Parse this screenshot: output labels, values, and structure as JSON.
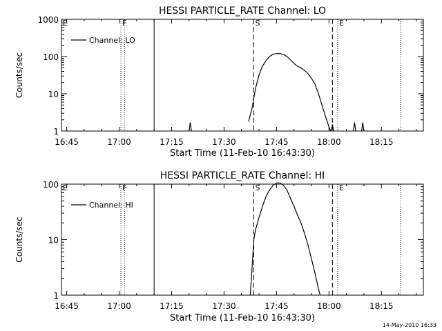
{
  "footer": "14-May-2010 16:33",
  "chart_data": [
    {
      "type": "line",
      "title": "HESSI PARTICLE_RATE Channel: LO",
      "xlabel": "Start Time (11-Feb-10 16:43:30)",
      "ylabel": "Counts/sec",
      "yscale": "log",
      "ylim": [
        1,
        1000
      ],
      "xlim": [
        "16:43:30",
        "18:27:00"
      ],
      "xticks": [
        "16:45",
        "17:00",
        "17:15",
        "17:30",
        "17:45",
        "18:00",
        "18:15"
      ],
      "yticks": [
        "1",
        "10",
        "100",
        "1000"
      ],
      "legend": {
        "label": "Channel: LO",
        "position": "top-left"
      },
      "markers": [
        {
          "label": "F",
          "time": "17:00:30",
          "style": "dotted"
        },
        {
          "label": "",
          "time": "17:01:30",
          "style": "dotted"
        },
        {
          "label": "",
          "time": "17:10:00",
          "style": "solid"
        },
        {
          "label": "S",
          "time": "17:38:30",
          "style": "dashed"
        },
        {
          "label": "",
          "time": "18:01:00",
          "style": "dashed"
        },
        {
          "label": "E",
          "time": "18:02:30",
          "style": "dotted"
        },
        {
          "label": "",
          "time": "18:20:30",
          "style": "dotted"
        }
      ],
      "series": [
        {
          "name": "Channel: LO",
          "segments": [
            {
              "x": [
                "17:20:00",
                "17:20:20",
                "17:20:40"
              ],
              "y": [
                1,
                1.7,
                1
              ]
            },
            {
              "x": [
                "17:37:00",
                "17:38:00",
                "17:39:00",
                "17:40:00",
                "17:41:00",
                "17:42:00",
                "17:43:00",
                "17:44:00",
                "17:45:00",
                "17:46:00",
                "17:47:00",
                "17:48:00",
                "17:49:00",
                "17:50:00",
                "17:51:00",
                "17:52:00",
                "17:53:00",
                "17:54:00",
                "17:55:00",
                "17:56:00",
                "17:57:00",
                "17:58:00",
                "17:59:00",
                "18:00:00",
                "18:00:30"
              ],
              "y": [
                1.8,
                4,
                14,
                32,
                55,
                78,
                100,
                115,
                120,
                120,
                113,
                100,
                82,
                65,
                55,
                50,
                42,
                35,
                26,
                18,
                10,
                5,
                2.5,
                1.3,
                1
              ]
            },
            {
              "x": [
                "18:00:40",
                "18:01:00",
                "18:01:20"
              ],
              "y": [
                1,
                1.5,
                1
              ]
            },
            {
              "x": [
                "18:07:00",
                "18:07:20",
                "18:07:40"
              ],
              "y": [
                1,
                1.7,
                1
              ]
            },
            {
              "x": [
                "18:09:20",
                "18:09:40",
                "18:10:00"
              ],
              "y": [
                1,
                1.7,
                1
              ]
            }
          ]
        }
      ]
    },
    {
      "type": "line",
      "title": "HESSI PARTICLE_RATE Channel: HI",
      "xlabel": "Start Time (11-Feb-10 16:43:30)",
      "ylabel": "Counts/sec",
      "yscale": "log",
      "ylim": [
        1,
        100
      ],
      "xlim": [
        "16:43:30",
        "18:27:00"
      ],
      "xticks": [
        "16:45",
        "17:00",
        "17:15",
        "17:30",
        "17:45",
        "18:00",
        "18:15"
      ],
      "yticks": [
        "1",
        "10",
        "100"
      ],
      "legend": {
        "label": "Channel: HI",
        "position": "top-left"
      },
      "markers": [
        {
          "label": "F",
          "time": "17:00:30",
          "style": "dotted"
        },
        {
          "label": "",
          "time": "17:01:30",
          "style": "dotted"
        },
        {
          "label": "",
          "time": "17:10:00",
          "style": "solid"
        },
        {
          "label": "S",
          "time": "17:38:30",
          "style": "dashed"
        },
        {
          "label": "",
          "time": "18:01:00",
          "style": "dashed"
        },
        {
          "label": "E",
          "time": "18:02:30",
          "style": "dotted"
        },
        {
          "label": "",
          "time": "18:20:30",
          "style": "dotted"
        }
      ],
      "series": [
        {
          "name": "Channel: HI",
          "segments": [
            {
              "x": [
                "17:37:30",
                "17:38:00",
                "17:38:30",
                "17:39:00",
                "17:40:00",
                "17:41:00",
                "17:42:00",
                "17:43:00",
                "17:44:00",
                "17:45:00",
                "17:46:00",
                "17:47:00",
                "17:48:00",
                "17:49:00",
                "17:50:00",
                "17:51:00",
                "17:52:00",
                "17:53:00",
                "17:54:00",
                "17:55:00",
                "17:56:00",
                "17:57:00",
                "17:57:30"
              ],
              "y": [
                1,
                3,
                10,
                15,
                25,
                40,
                60,
                78,
                95,
                105,
                105,
                95,
                78,
                55,
                40,
                28,
                20,
                13,
                8,
                4.5,
                2.5,
                1.3,
                1
              ]
            }
          ]
        }
      ]
    }
  ]
}
